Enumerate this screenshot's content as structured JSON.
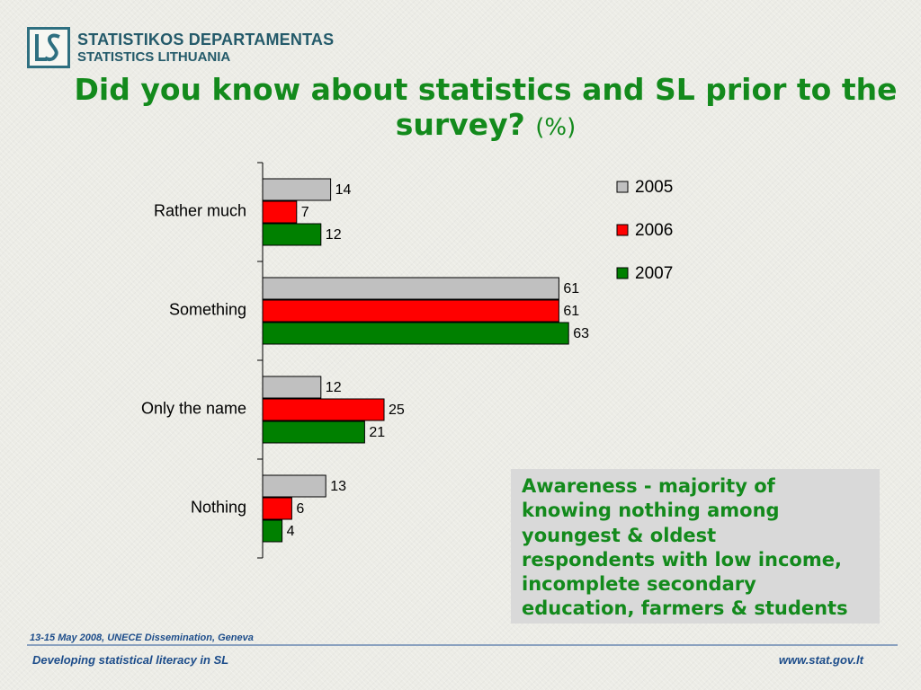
{
  "header": {
    "org_name_lt": "STATISTIKOS DEPARTAMENTAS",
    "org_name_en": "STATISTICS LITHUANIA"
  },
  "title": {
    "text": "Did you know about statistics and SL prior to the survey?",
    "unit": "(%)"
  },
  "chart_data": {
    "type": "bar",
    "orientation": "horizontal",
    "categories": [
      "Rather much",
      "Something",
      "Only the name",
      "Nothing"
    ],
    "series": [
      {
        "name": "2005",
        "values": [
          14,
          61,
          12,
          13
        ],
        "color": "#c0c0c0"
      },
      {
        "name": "2006",
        "values": [
          7,
          61,
          25,
          6
        ],
        "color": "#ff0000"
      },
      {
        "name": "2007",
        "values": [
          12,
          63,
          21,
          4
        ],
        "color": "#008000"
      }
    ],
    "data_labels": true,
    "legend_position": "top-right",
    "grid": false
  },
  "note": {
    "lines": [
      "Awareness - majority of",
      "knowing nothing among",
      "youngest & oldest",
      "respondents with low income,",
      "incomplete secondary",
      "education, farmers & students"
    ]
  },
  "footer": {
    "date_event": "13-15 May 2008, UNECE Dissemination, Geneva",
    "left": "Developing statistical literacy in SL",
    "right": "www.stat.gov.lt"
  }
}
